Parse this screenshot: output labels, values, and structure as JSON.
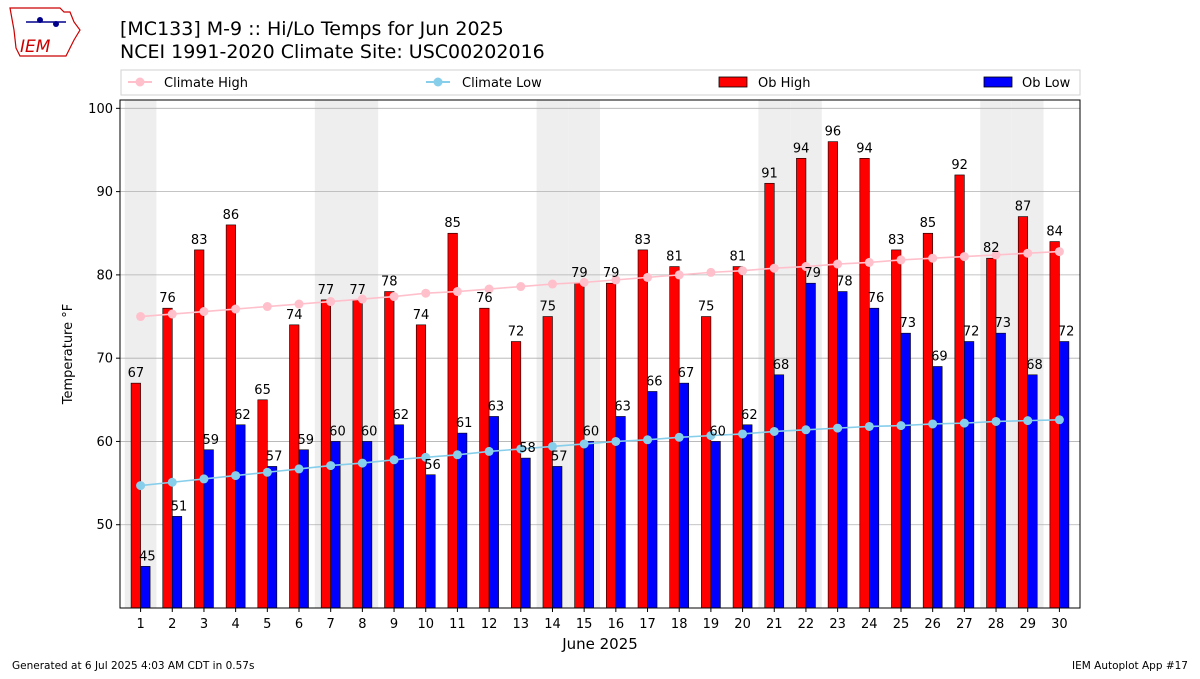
{
  "logo_text": "IEM",
  "title_line1": "[MC133] M-9  :: Hi/Lo Temps for Jun 2025",
  "title_line2": "NCEI 1991-2020 Climate Site: USC00202016",
  "legend": {
    "climate_high": "Climate High",
    "climate_low": "Climate Low",
    "ob_high": "Ob High",
    "ob_low": "Ob Low"
  },
  "footer_left": "Generated at 6 Jul 2025 4:03 AM CDT in 0.57s",
  "footer_right": "IEM Autoplot App #17",
  "colors": {
    "ob_high": "#ff0000",
    "ob_low": "#0000ff",
    "climate_high": "#ffc0cb",
    "climate_low": "#87ceeb",
    "weekend_shade": "#eeeeee",
    "grid": "#b0b0b0"
  },
  "chart_data": {
    "type": "bar",
    "xlabel": "June 2025",
    "ylabel": "Temperature °F",
    "ylim": [
      40,
      101
    ],
    "yticks": [
      50,
      60,
      70,
      80,
      90,
      100
    ],
    "grid": "horizontal",
    "legend_position": "top",
    "categories": [
      "1",
      "2",
      "3",
      "4",
      "5",
      "6",
      "7",
      "8",
      "9",
      "10",
      "11",
      "12",
      "13",
      "14",
      "15",
      "16",
      "17",
      "18",
      "19",
      "20",
      "21",
      "22",
      "23",
      "24",
      "25",
      "26",
      "27",
      "28",
      "29",
      "30"
    ],
    "shaded_days": [
      1,
      7,
      8,
      14,
      15,
      21,
      22,
      28,
      29
    ],
    "series": [
      {
        "name": "Ob High",
        "kind": "bar",
        "values": [
          67,
          76,
          83,
          86,
          65,
          74,
          77,
          77,
          78,
          74,
          85,
          76,
          72,
          75,
          79,
          79,
          83,
          81,
          75,
          81,
          91,
          94,
          96,
          94,
          83,
          85,
          92,
          82,
          87,
          84
        ]
      },
      {
        "name": "Ob Low",
        "kind": "bar",
        "values": [
          45,
          51,
          59,
          62,
          57,
          59,
          60,
          60,
          62,
          56,
          61,
          63,
          58,
          57,
          60,
          63,
          66,
          67,
          60,
          62,
          68,
          79,
          78,
          76,
          73,
          69,
          72,
          73,
          68,
          72
        ]
      },
      {
        "name": "Climate High",
        "kind": "line",
        "values": [
          75.0,
          75.3,
          75.6,
          75.9,
          76.2,
          76.5,
          76.8,
          77.1,
          77.4,
          77.8,
          78.0,
          78.3,
          78.6,
          78.9,
          79.1,
          79.4,
          79.7,
          80.0,
          80.3,
          80.5,
          80.8,
          81.0,
          81.3,
          81.5,
          81.8,
          82.0,
          82.2,
          82.4,
          82.6,
          82.8
        ]
      },
      {
        "name": "Climate Low",
        "kind": "line",
        "values": [
          54.7,
          55.1,
          55.5,
          55.9,
          56.3,
          56.7,
          57.1,
          57.4,
          57.8,
          58.1,
          58.4,
          58.8,
          59.1,
          59.4,
          59.7,
          60.0,
          60.2,
          60.5,
          60.7,
          60.9,
          61.2,
          61.4,
          61.6,
          61.8,
          61.9,
          62.1,
          62.2,
          62.4,
          62.5,
          62.6
        ]
      }
    ]
  }
}
